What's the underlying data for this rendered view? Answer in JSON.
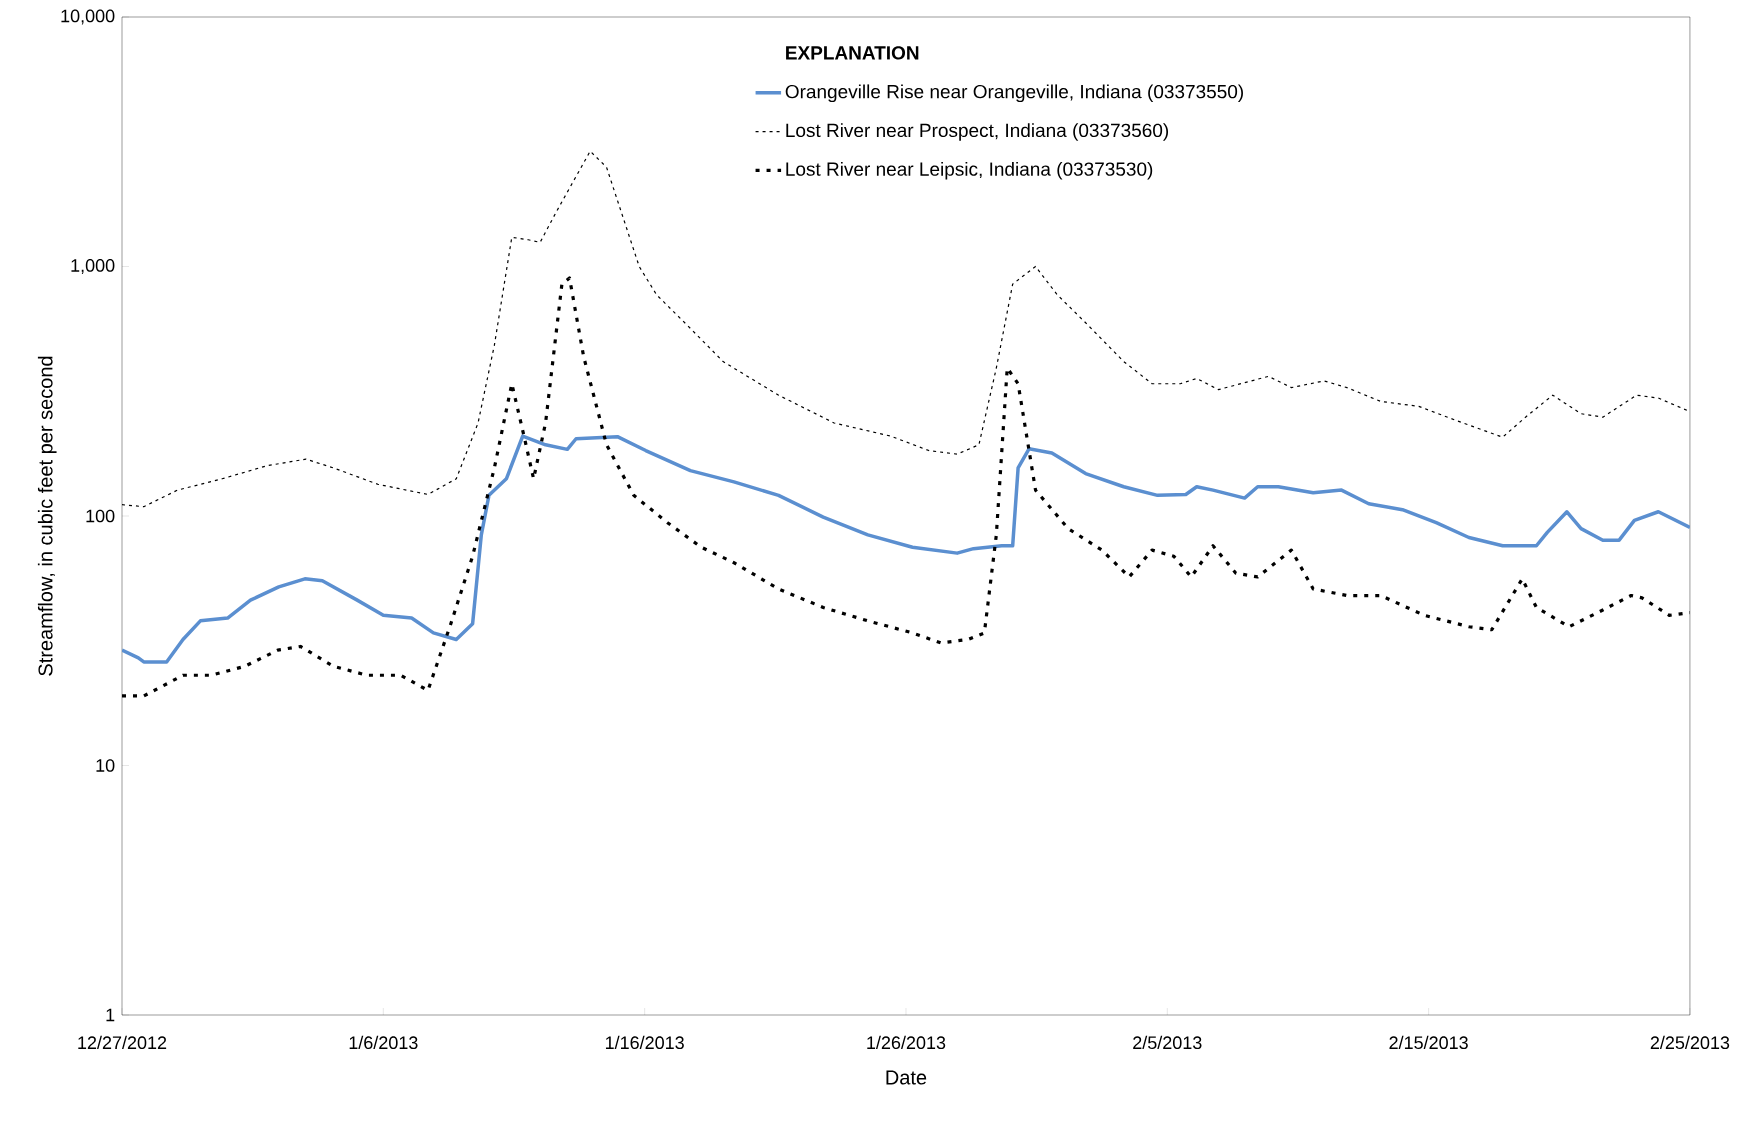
{
  "chart_data": {
    "type": "line",
    "xlabel": "Date",
    "ylabel": "Streamflow, in cubic feet per second",
    "legend_title": "EXPLANATION",
    "legend": "top",
    "grid": false,
    "log": "y",
    "marker": "none",
    "xlim": [
      "2012-12-27",
      "2013-02-25"
    ],
    "xticks": [
      {
        "value": "2012-12-27",
        "label": "12/27/2012"
      },
      {
        "value": "2013-01-06",
        "label": "1/6/2013"
      },
      {
        "value": "2013-01-16",
        "label": "1/16/2013"
      },
      {
        "value": "2013-01-26",
        "label": "1/26/2013"
      },
      {
        "value": "2013-02-05",
        "label": "2/5/2013"
      },
      {
        "value": "2013-02-15",
        "label": "2/15/2013"
      },
      {
        "value": "2013-02-25",
        "label": "2/25/2013"
      }
    ],
    "ylim": [
      1,
      10000
    ],
    "yticks": [
      1,
      10,
      100,
      {
        "value": 1000,
        "label": "1,000"
      },
      {
        "value": 10000,
        "label": "10,000"
      }
    ],
    "series": [
      {
        "name": "Orangeville Rise near Orangeville, Indiana (03373550)",
        "color": "#5b8fd0",
        "line_style": "solid",
        "x": [
          "2012-12-27T00:00",
          "2012-12-27T15:00",
          "2012-12-27T20:00",
          "2012-12-28T17:00",
          "2012-12-29T08:00",
          "2012-12-30T00:00",
          "2012-12-31T01:00",
          "2012-12-31T22:00",
          "2013-01-02T00:00",
          "2013-01-03T00:00",
          "2013-01-03T16:00",
          "2013-01-05T00:00",
          "2013-01-06T00:00",
          "2013-01-07T02:00",
          "2013-01-07T22:00",
          "2013-01-08T19:00",
          "2013-01-09T10:00",
          "2013-01-09T18:00",
          "2013-01-10T01:00",
          "2013-01-10T17:00",
          "2013-01-11T08:00",
          "2013-01-12T05:00",
          "2013-01-13T01:00",
          "2013-01-13T09:00",
          "2013-01-14T23:00",
          "2013-01-16T01:00",
          "2013-01-17T18:00",
          "2013-01-19T10:00",
          "2013-01-21T03:00",
          "2013-01-22T20:00",
          "2013-01-24T13:00",
          "2013-01-26T06:00",
          "2013-01-27T23:00",
          "2013-01-28T14:00",
          "2013-01-29T16:00",
          "2013-01-30T02:00",
          "2013-01-30T07:00",
          "2013-01-30T17:00",
          "2013-01-31T14:00",
          "2013-02-01T21:00",
          "2013-02-03T08:00",
          "2013-02-04T15:00",
          "2013-02-05T17:00",
          "2013-02-06T03:00",
          "2013-02-06T18:00",
          "2013-02-07T23:00",
          "2013-02-08T11:00",
          "2013-02-09T06:00",
          "2013-02-10T14:00",
          "2013-02-11T16:00",
          "2013-02-12T17:00",
          "2013-02-14T00:00",
          "2013-02-15T07:00",
          "2013-02-16T13:00",
          "2013-02-17T20:00",
          "2013-02-19T03:00",
          "2013-02-19T13:00",
          "2013-02-20T07:00",
          "2013-02-20T20:00",
          "2013-02-21T16:00",
          "2013-02-22T07:00",
          "2013-02-22T21:00",
          "2013-02-23T19:00",
          "2013-02-25T00:00"
        ],
        "values": [
          29,
          27,
          26,
          26,
          32,
          38,
          39,
          46,
          52,
          56,
          55,
          46,
          40,
          39,
          34,
          32,
          37,
          84,
          121,
          141,
          209,
          193,
          185,
          204,
          208,
          183,
          152,
          137,
          121,
          99,
          84,
          75,
          71,
          74,
          76,
          76,
          156,
          186,
          179,
          148,
          131,
          121,
          122,
          131,
          127,
          118,
          131,
          131,
          124,
          127,
          112,
          106,
          94,
          82,
          76,
          76,
          86,
          104,
          89,
          80,
          80,
          96,
          104,
          90
        ]
      },
      {
        "name": "Lost River near Prospect, Indiana (03373560)",
        "color": "#000000",
        "line_style": "dashed",
        "x": [
          "2012-12-27T00:00",
          "2012-12-27T20:00",
          "2012-12-29T03:00",
          "2012-12-30T20:00",
          "2013-01-01T13:00",
          "2013-01-03T01:00",
          "2013-01-04T02:00",
          "2013-01-05T19:00",
          "2013-01-07T17:00",
          "2013-01-08T19:00",
          "2013-01-09T15:00",
          "2013-01-10T06:00",
          "2013-01-10T22:00",
          "2013-01-11T13:00",
          "2013-01-12T00:00",
          "2013-01-12T15:00",
          "2013-01-13T22:00",
          "2013-01-14T13:00",
          "2013-01-15T19:00",
          "2013-01-16T11:00",
          "2013-01-17T18:00",
          "2013-01-19T00:00",
          "2013-01-21T03:00",
          "2013-01-23T06:00",
          "2013-01-25T10:00",
          "2013-01-26T21:00",
          "2013-01-27T23:00",
          "2013-01-28T19:00",
          "2013-01-29T11:00",
          "2013-01-30T02:00",
          "2013-01-30T23:00",
          "2013-01-31T19:00",
          "2013-02-01T21:00",
          "2013-02-03T08:00",
          "2013-02-04T10:00",
          "2013-02-05T12:00",
          "2013-02-06T03:00",
          "2013-02-06T23:00",
          "2013-02-08T21:00",
          "2013-02-09T18:00",
          "2013-02-11T00:00",
          "2013-02-11T21:00",
          "2013-02-13T04:00",
          "2013-02-14T15:00",
          "2013-02-16T03:00",
          "2013-02-17T20:00",
          "2013-02-18T17:00",
          "2013-02-19T18:00",
          "2013-02-20T20:00",
          "2013-02-21T16:00",
          "2013-02-22T23:00",
          "2013-02-23T19:00",
          "2013-02-25T00:00"
        ],
        "values": [
          111,
          109,
          127,
          141,
          159,
          169,
          156,
          134,
          122,
          141,
          236,
          484,
          1310,
          1280,
          1250,
          1660,
          2900,
          2500,
          1000,
          770,
          565,
          416,
          305,
          236,
          209,
          183,
          177,
          193,
          392,
          850,
          1000,
          770,
          595,
          416,
          339,
          339,
          356,
          321,
          363,
          327,
          348,
          327,
          288,
          275,
          240,
          207,
          249,
          305,
          257,
          249,
          305,
          297,
          262
        ]
      },
      {
        "name": "Lost River near Leipsic, Indiana (03373530)",
        "color": "#000000",
        "line_style": "dotted",
        "x": [
          "2012-12-27T00:00",
          "2012-12-27T20:00",
          "2012-12-29T08:00",
          "2012-12-30T10:00",
          "2012-12-31T17:00",
          "2013-01-01T23:00",
          "2013-01-02T20:00",
          "2013-01-04T02:00",
          "2013-01-05T09:00",
          "2013-01-06T16:00",
          "2013-01-07T17:00",
          "2013-01-08T14:00",
          "2013-01-09T10:00",
          "2013-01-10T06:00",
          "2013-01-10T22:00",
          "2013-01-11T10:00",
          "2013-01-11T18:00",
          "2013-01-12T05:00",
          "2013-01-12T20:00",
          "2013-01-13T03:00",
          "2013-01-13T16:00",
          "2013-01-14T13:00",
          "2013-01-15T14:00",
          "2013-01-16T21:00",
          "2013-01-18T04:00",
          "2013-01-19T10:00",
          "2013-01-21T03:00",
          "2013-01-22T20:00",
          "2013-01-24T13:00",
          "2013-01-26T06:00",
          "2013-01-27T08:00",
          "2013-01-28T09:00",
          "2013-01-29T00:00",
          "2013-01-29T11:00",
          "2013-01-29T21:00",
          "2013-01-30T07:00",
          "2013-01-30T23:00",
          "2013-02-01T05:00",
          "2013-02-02T12:00",
          "2013-02-03T13:00",
          "2013-02-04T10:00",
          "2013-02-05T06:00",
          "2013-02-05T22:00",
          "2013-02-06T18:00",
          "2013-02-07T15:00",
          "2013-02-08T11:00",
          "2013-02-09T18:00",
          "2013-02-10T14:00",
          "2013-02-11T21:00",
          "2013-02-13T04:00",
          "2013-02-14T20:00",
          "2013-02-16T13:00",
          "2013-02-17T10:00",
          "2013-02-18T14:00",
          "2013-02-19T03:00",
          "2013-02-20T09:00",
          "2013-02-21T16:00",
          "2013-02-22T18:00",
          "2013-02-23T04:00",
          "2013-02-24T05:00",
          "2013-02-25T00:00"
        ],
        "values": [
          19,
          19,
          23,
          23,
          25,
          29,
          30,
          25,
          23,
          23,
          20,
          37,
          69,
          156,
          339,
          202,
          141,
          236,
          850,
          900,
          435,
          193,
          121,
          94,
          75,
          65,
          51,
          43,
          38,
          34,
          31,
          32,
          34,
          84,
          392,
          339,
          127,
          89,
          73,
          57,
          73,
          69,
          57,
          76,
          59,
          57,
          73,
          51,
          48,
          48,
          40,
          36,
          35,
          56,
          43,
          36,
          42,
          48,
          47,
          40,
          41
        ]
      }
    ]
  }
}
